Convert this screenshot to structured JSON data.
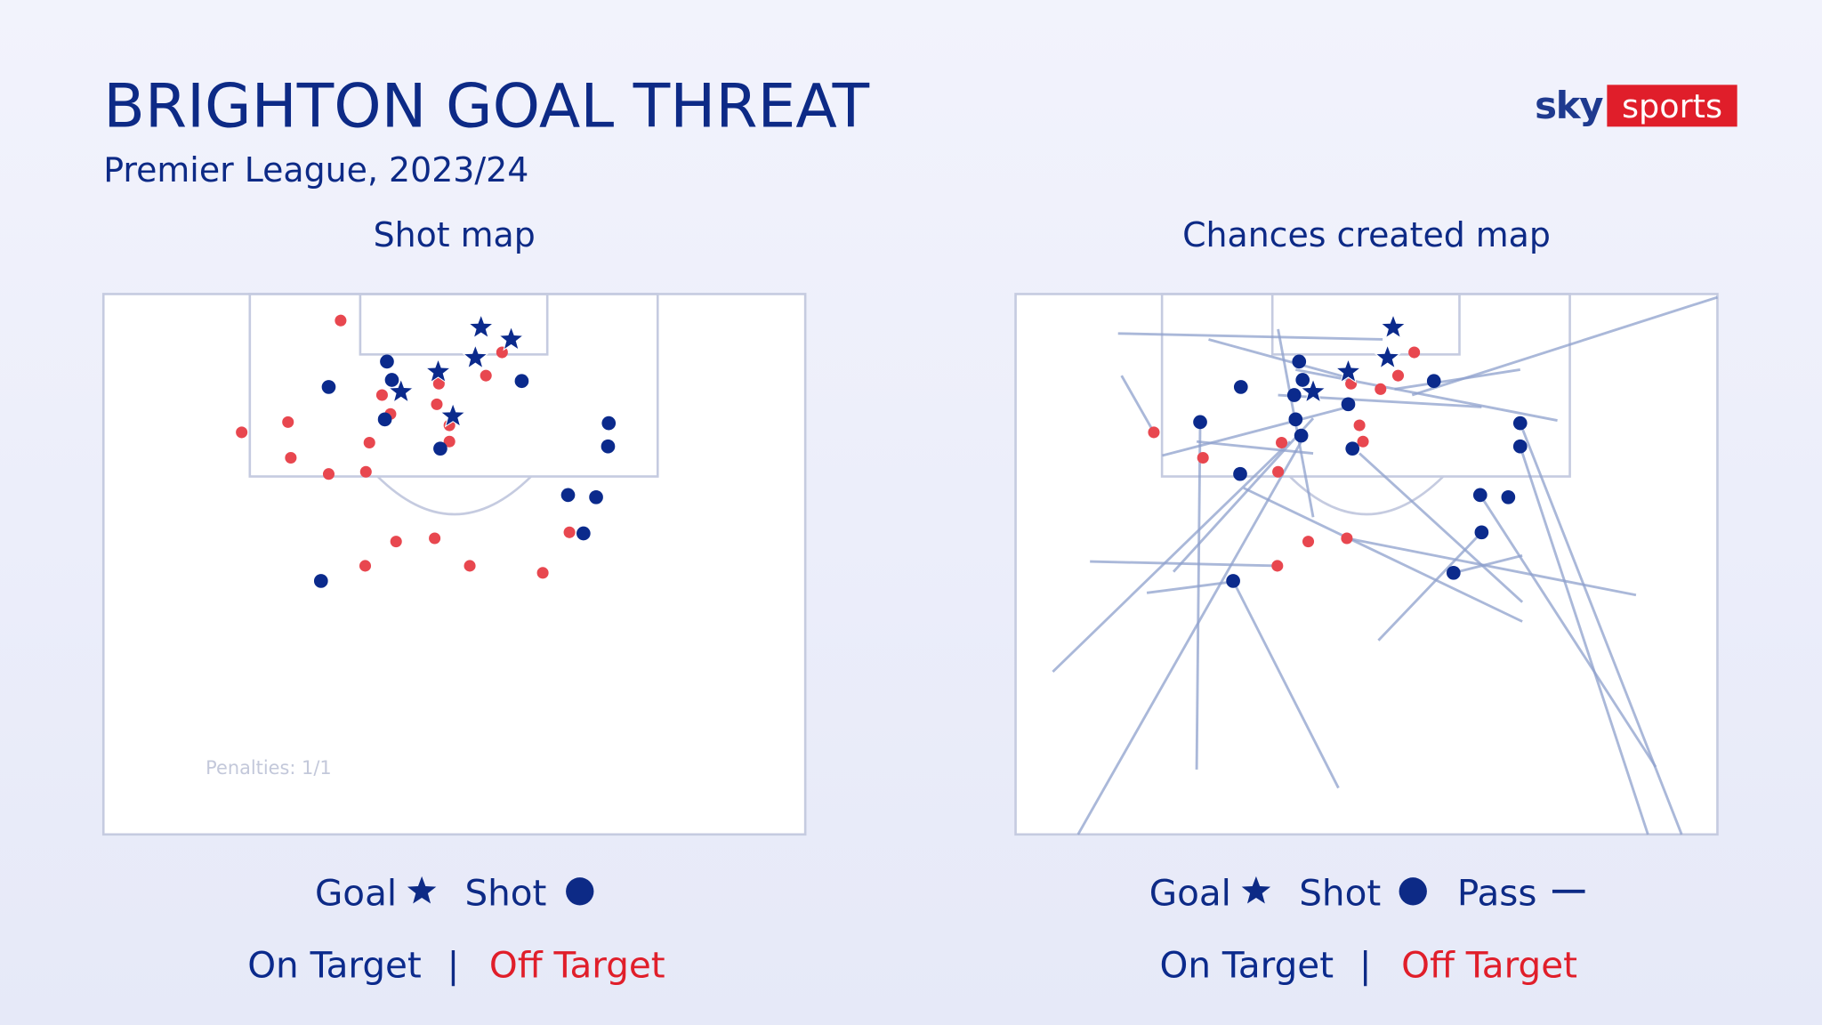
{
  "header": {
    "title": "BRIGHTON GOAL THREAT",
    "subtitle": "Premier League, 2023/24"
  },
  "logo": {
    "sky": "sky",
    "sports": "sports"
  },
  "chart_data": [
    {
      "type": "shotmap",
      "title": "Shot map",
      "xlim": [
        0,
        100
      ],
      "ylim": [
        0,
        100
      ],
      "annotation": "Penalties: 1/1",
      "series": [
        {
          "marker": "star",
          "color": "#0b2a8c",
          "x": [
            53.8,
            58.1,
            53.0,
            47.7,
            42.4,
            49.8
          ],
          "y": [
            6.2,
            8.4,
            11.8,
            14.4,
            18.1,
            22.6
          ]
        },
        {
          "marker": "circle",
          "color": "#0b2a8c",
          "x": [
            40.4,
            32.1,
            41.1,
            59.6,
            40.1,
            48.0,
            72.0,
            71.9,
            66.2,
            70.2,
            68.4,
            31.0
          ],
          "y": [
            12.5,
            17.2,
            15.9,
            16.1,
            23.2,
            28.6,
            23.9,
            28.2,
            37.2,
            37.6,
            44.3,
            53.1
          ]
        },
        {
          "marker": "circle",
          "color": "#e8474f",
          "x": [
            33.8,
            56.8,
            54.5,
            47.8,
            39.7,
            26.3,
            19.7,
            40.9,
            37.9,
            47.5,
            49.3,
            49.3,
            26.7,
            32.1,
            37.4,
            41.7,
            47.2,
            52.2,
            37.3,
            62.6,
            66.4
          ],
          "y": [
            4.9,
            10.8,
            15.1,
            16.6,
            18.7,
            23.7,
            25.6,
            22.2,
            27.5,
            20.4,
            24.3,
            27.3,
            30.3,
            33.3,
            32.9,
            45.8,
            45.2,
            50.3,
            50.3,
            51.6,
            44.1
          ]
        }
      ],
      "legend": {
        "markers": [
          "Goal",
          "Shot"
        ],
        "targets": [
          "On Target",
          "|",
          "Off Target"
        ]
      }
    },
    {
      "type": "shotmap",
      "title": "Chances created map",
      "xlim": [
        0,
        100
      ],
      "ylim": [
        0,
        100
      ],
      "passes": {
        "color": "#8ea0cc",
        "x": [
          14.6,
          100,
          15.1,
          27.5,
          71.9,
          5.3,
          8.9,
          25.8,
          31.0,
          90.1,
          94.9,
          91.2,
          10.6,
          18.7,
          51.7,
          88.4,
          72.2,
          72.2,
          72.2,
          77.2,
          22.5,
          20.9,
          37.4,
          25.8,
          66.4
        ],
        "y": [
          7.3,
          0.6,
          15.1,
          8.4,
          14.0,
          69.9,
          100,
          88.0,
          53.1,
          100,
          100,
          87.5,
          49.5,
          55.3,
          64.1,
          55.7,
          60.6,
          57.0,
          48.4,
          23.4,
          51.4,
          29.9,
          6.5,
          27.3,
          20.9
        ],
        "x2": [
          52.3,
          56.5,
          19.7,
          47.4,
          54.0,
          39.1,
          40.7,
          26.3,
          46.0,
          71.9,
          71.9,
          66.4,
          37.4,
          31.8,
          66.4,
          47.2,
          32.5,
          49.0,
          62.4,
          39.9,
          42.4,
          47.4,
          42.4,
          42.4,
          37.4
        ],
        "y2": [
          8.4,
          18.7,
          25.6,
          15.5,
          17.6,
          27.3,
          27.3,
          23.7,
          91.4,
          28.2,
          23.9,
          37.6,
          50.3,
          53.1,
          44.1,
          45.2,
          35.9,
          29.5,
          51.6,
          14.0,
          23.0,
          20.9,
          41.3,
          29.5,
          18.7
        ]
      },
      "series": [
        {
          "marker": "star",
          "color": "#0b2a8c",
          "x": [
            53.8,
            53.0,
            47.4,
            42.4
          ],
          "y": [
            6.2,
            11.8,
            14.4,
            18.1
          ]
        },
        {
          "marker": "circle",
          "color": "#0b2a8c",
          "x": [
            40.4,
            32.1,
            40.9,
            59.6,
            39.7,
            39.9,
            47.4,
            40.7,
            48.0,
            26.3,
            32.0,
            71.9,
            71.9,
            66.2,
            70.2,
            66.4,
            62.4,
            31.0
          ],
          "y": [
            12.5,
            17.2,
            15.9,
            16.1,
            18.7,
            23.2,
            20.4,
            26.2,
            28.6,
            23.7,
            33.3,
            23.9,
            28.2,
            37.2,
            37.6,
            44.1,
            51.6,
            53.1
          ]
        },
        {
          "marker": "circle",
          "color": "#e8474f",
          "x": [
            56.8,
            54.5,
            52.0,
            47.8,
            49.0,
            49.5,
            19.7,
            26.7,
            37.9,
            37.4,
            47.2,
            41.7,
            37.3
          ],
          "y": [
            10.8,
            15.1,
            17.6,
            16.6,
            24.3,
            27.3,
            25.6,
            30.3,
            27.5,
            32.9,
            45.2,
            45.8,
            50.3
          ]
        }
      ],
      "legend": {
        "markers": [
          "Goal",
          "Shot",
          "Pass"
        ],
        "targets": [
          "On Target",
          "|",
          "Off Target"
        ]
      }
    }
  ]
}
